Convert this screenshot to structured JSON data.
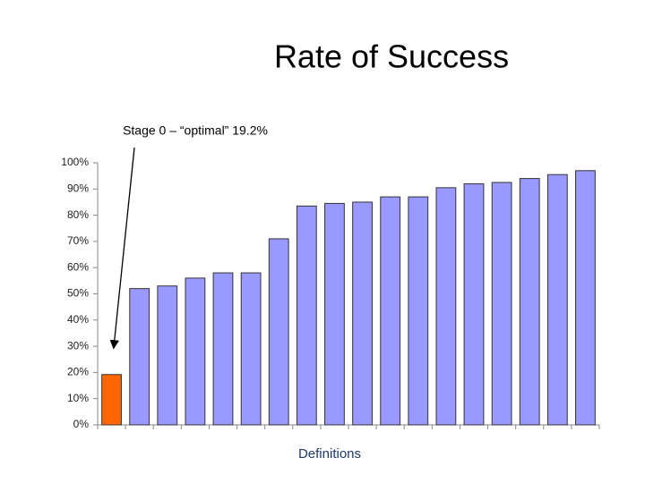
{
  "chart_data": {
    "type": "bar",
    "title": "Rate of Success",
    "annotation": "Stage 0 – “optimal” 19.2%",
    "x_label": "Definitions",
    "categories": [
      null,
      null,
      null,
      null,
      null,
      null,
      null,
      null,
      null,
      null,
      null,
      null,
      null,
      null,
      null,
      null,
      null,
      null
    ],
    "values": [
      19.2,
      52,
      53,
      56,
      58,
      58,
      71,
      83.5,
      84.5,
      85,
      87,
      87,
      90.5,
      92,
      92.5,
      94,
      95.5,
      97
    ],
    "colors": [
      "#ff6600",
      "#9999ff",
      "#9999ff",
      "#9999ff",
      "#9999ff",
      "#9999ff",
      "#9999ff",
      "#9999ff",
      "#9999ff",
      "#9999ff",
      "#9999ff",
      "#9999ff",
      "#9999ff",
      "#9999ff",
      "#9999ff",
      "#9999ff",
      "#9999ff",
      "#9999ff"
    ],
    "ylim": [
      0,
      100
    ],
    "yticks": [
      {
        "value": 0,
        "label": "0%"
      },
      {
        "value": 10,
        "label": "10%"
      },
      {
        "value": 20,
        "label": "20%"
      },
      {
        "value": 30,
        "label": "30%"
      },
      {
        "value": 40,
        "label": "40%"
      },
      {
        "value": 50,
        "label": "50%"
      },
      {
        "value": 60,
        "label": "60%"
      },
      {
        "value": 70,
        "label": "70%"
      },
      {
        "value": 80,
        "label": "80%"
      },
      {
        "value": 90,
        "label": "90%"
      },
      {
        "value": 100,
        "label": "100%"
      }
    ],
    "grid": false
  }
}
